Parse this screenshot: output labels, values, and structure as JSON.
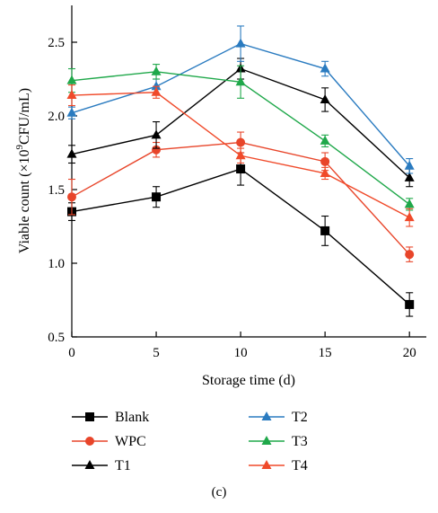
{
  "chart_data": {
    "type": "line",
    "xlabel": "Storage time (d)",
    "ylabel_prefix": "Viable count (×10",
    "ylabel_sup": "9",
    "ylabel_suffix": "CFU/mL)",
    "xlim": [
      0,
      21
    ],
    "ylim": [
      0.5,
      2.75
    ],
    "xticks": [
      0,
      5,
      10,
      15,
      20
    ],
    "yticks": [
      0.5,
      1.0,
      1.5,
      2.0,
      2.5
    ],
    "ytick_labels": [
      "0.5",
      "1.0",
      "1.5",
      "2.0",
      "2.5"
    ],
    "x": [
      0,
      5,
      10,
      15,
      20
    ],
    "grid": false,
    "legend_position": "bottom",
    "panel_label": "(c)",
    "series": [
      {
        "name": "Blank",
        "color": "#000000",
        "marker": "square",
        "values": [
          1.35,
          1.45,
          1.64,
          1.22,
          0.72
        ],
        "errors": [
          0.06,
          0.07,
          0.11,
          0.1,
          0.08
        ]
      },
      {
        "name": "WPC",
        "color": "#e8452a",
        "marker": "circle",
        "values": [
          1.45,
          1.77,
          1.82,
          1.69,
          1.06
        ],
        "errors": [
          0.12,
          0.05,
          0.07,
          0.06,
          0.05
        ]
      },
      {
        "name": "T1",
        "color": "#000000",
        "marker": "triangle",
        "values": [
          1.74,
          1.87,
          2.32,
          2.11,
          1.58
        ],
        "errors": [
          0.06,
          0.09,
          0.07,
          0.08,
          0.06
        ]
      },
      {
        "name": "T2",
        "color": "#2a7bc0",
        "marker": "triangle",
        "values": [
          2.02,
          2.2,
          2.49,
          2.32,
          1.66
        ],
        "errors": [
          0.04,
          0.05,
          0.12,
          0.05,
          0.05
        ]
      },
      {
        "name": "T3",
        "color": "#1fa84a",
        "marker": "triangle",
        "values": [
          2.24,
          2.3,
          2.23,
          1.83,
          1.4
        ],
        "errors": [
          0.08,
          0.05,
          0.11,
          0.04,
          0.04
        ]
      },
      {
        "name": "T4",
        "color": "#f04a2a",
        "marker": "triangle",
        "values": [
          2.14,
          2.16,
          1.73,
          1.61,
          1.31
        ],
        "errors": [
          0.07,
          0.04,
          0.05,
          0.04,
          0.06
        ]
      }
    ]
  }
}
